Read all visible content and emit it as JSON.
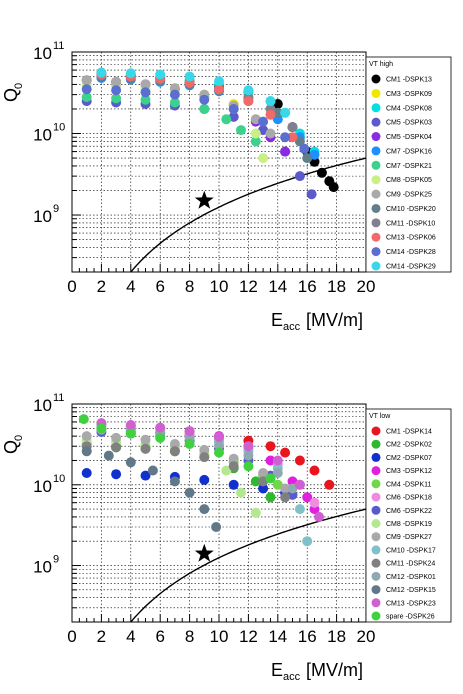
{
  "chart_data": [
    {
      "type": "scatter",
      "xlabel_main": "E",
      "xlabel_sub": "acc",
      "xlabel_unit": "[MV/m]",
      "ylabel_main": "Q",
      "ylabel_sub": "0",
      "xlim": [
        0,
        20
      ],
      "ylim": [
        200000000,
        100000000000
      ],
      "yscale": "log",
      "x_ticks": [
        "0",
        "2",
        "4",
        "6",
        "8",
        "10",
        "12",
        "14",
        "16",
        "18",
        "20"
      ],
      "y_ticks": [
        {
          "base": "10",
          "exp": "11",
          "value": 100000000000
        },
        {
          "base": "10",
          "exp": "10",
          "value": 10000000000
        },
        {
          "base": "10",
          "exp": "9",
          "value": 1000000000
        }
      ],
      "grid": true,
      "legend_title": "VT high",
      "legend_position": "right",
      "star_marker": {
        "x": 9.0,
        "y": 1500000000
      },
      "reference_curve": {
        "formula": "Q0 = 1.25e7 * E^2",
        "coefficient": 12500000
      },
      "series": [
        {
          "name": "CM1  -DSPK13",
          "color": "#000000",
          "x": [
            2.0,
            4.0,
            6.0,
            8.0,
            10.0,
            12.0,
            14.0,
            15.0,
            16.0,
            16.5,
            17.0,
            17.5,
            17.8
          ],
          "y": [
            55000000000.0,
            52000000000.0,
            48000000000.0,
            42000000000.0,
            38000000000.0,
            33000000000.0,
            23000000000.0,
            12000000000.0,
            6000000000.0,
            4500000000.0,
            3300000000.0,
            2600000000.0,
            2200000000.0
          ]
        },
        {
          "name": "CM3  -DSPK09",
          "color": "#f2e600",
          "x": [
            1.0,
            3.0,
            5.0,
            7.0,
            9.0,
            11.0,
            12.5,
            13.5
          ],
          "y": [
            45000000000.0,
            43000000000.0,
            40000000000.0,
            36000000000.0,
            30000000000.0,
            23000000000.0,
            14000000000.0,
            9000000000.0
          ]
        },
        {
          "name": "CM4  -DSPK08",
          "color": "#00e0e0",
          "x": [
            2.0,
            4.0,
            6.0,
            8.0,
            10.0,
            12.0,
            13.5,
            14.5,
            15.5,
            16.5
          ],
          "y": [
            55000000000.0,
            52000000000.0,
            50000000000.0,
            45000000000.0,
            40000000000.0,
            32000000000.0,
            25000000000.0,
            18000000000.0,
            10000000000.0,
            6000000000.0
          ]
        },
        {
          "name": "CM5  -DSPK03",
          "color": "#5a5acd",
          "x": [
            1.0,
            3.0,
            5.0,
            7.0,
            9.0,
            11.0,
            13.0,
            14.5,
            15.5,
            16.3
          ],
          "y": [
            25000000000.0,
            24000000000.0,
            23000000000.0,
            22000000000.0,
            20000000000.0,
            16000000000.0,
            11000000000.0,
            6000000000.0,
            3000000000.0,
            1800000000.0
          ]
        },
        {
          "name": "CM5  -DSPK04",
          "color": "#8a2be2",
          "x": [
            1.0,
            3.0,
            5.0,
            7.0,
            9.0,
            11.0,
            12.5,
            13.5,
            14.5
          ],
          "y": [
            45000000000.0,
            43000000000.0,
            40000000000.0,
            35000000000.0,
            28000000000.0,
            20000000000.0,
            14000000000.0,
            9000000000.0,
            6000000000.0
          ]
        },
        {
          "name": "CM7  -DSPK16",
          "color": "#1e90ff",
          "x": [
            2.0,
            4.0,
            6.0,
            8.0,
            10.0,
            12.0,
            14.0,
            15.5,
            16.5
          ],
          "y": [
            48000000000.0,
            46000000000.0,
            43000000000.0,
            39000000000.0,
            33000000000.0,
            25000000000.0,
            15000000000.0,
            9000000000.0,
            5500000000.0
          ]
        },
        {
          "name": "CM7  -DSPK21",
          "color": "#3cd28c",
          "x": [
            1.0,
            3.0,
            5.0,
            7.0,
            9.0,
            10.5,
            11.5,
            12.5
          ],
          "y": [
            28000000000.0,
            27000000000.0,
            26000000000.0,
            24000000000.0,
            20000000000.0,
            15000000000.0,
            11000000000.0,
            8000000000.0
          ]
        },
        {
          "name": "CM8  -DSPK05",
          "color": "#c8f082",
          "x": [
            1.0,
            3.0,
            5.0,
            7.0,
            9.0,
            11.0,
            12.5,
            13.0
          ],
          "y": [
            40000000000.0,
            38000000000.0,
            36000000000.0,
            33000000000.0,
            27000000000.0,
            20000000000.0,
            10000000000.0,
            5000000000.0
          ]
        },
        {
          "name": "CM9  -DSPK25",
          "color": "#a9a9a9",
          "x": [
            1.0,
            3.0,
            5.0,
            7.0,
            9.0,
            11.0,
            12.5,
            13.5
          ],
          "y": [
            45000000000.0,
            43000000000.0,
            40000000000.0,
            36000000000.0,
            30000000000.0,
            22000000000.0,
            15000000000.0,
            10000000000.0
          ]
        },
        {
          "name": "CM10  -DSPK20",
          "color": "#607f8a",
          "x": [
            2.0,
            4.0,
            6.0,
            8.0,
            10.0,
            12.0,
            14.0,
            15.5,
            16.0
          ],
          "y": [
            50000000000.0,
            48000000000.0,
            45000000000.0,
            40000000000.0,
            34000000000.0,
            27000000000.0,
            18000000000.0,
            8000000000.0,
            5000000000.0
          ]
        },
        {
          "name": "CM11  -DSPK10",
          "color": "#808090",
          "x": [
            2.0,
            4.0,
            6.0,
            8.0,
            10.0,
            12.0,
            13.5,
            15.0
          ],
          "y": [
            52000000000.0,
            50000000000.0,
            47000000000.0,
            43000000000.0,
            36000000000.0,
            28000000000.0,
            20000000000.0,
            12000000000.0
          ]
        },
        {
          "name": "CM13  -DSPK06",
          "color": "#f06a6a",
          "x": [
            2.0,
            4.0,
            6.0,
            8.0,
            10.0,
            12.0,
            13.5,
            15.0
          ],
          "y": [
            53000000000.0,
            50000000000.0,
            47000000000.0,
            42000000000.0,
            35000000000.0,
            25000000000.0,
            17000000000.0,
            9000000000.0
          ]
        },
        {
          "name": "CM14  -DSPK28",
          "color": "#5b6fd0",
          "x": [
            1.0,
            3.0,
            5.0,
            7.0,
            9.0,
            11.0,
            13.0,
            14.5,
            15.8
          ],
          "y": [
            35000000000.0,
            34000000000.0,
            32000000000.0,
            30000000000.0,
            26000000000.0,
            20000000000.0,
            14000000000.0,
            9000000000.0,
            6500000000.0
          ]
        },
        {
          "name": "CM14  -DSPK29",
          "color": "#38d8e8",
          "x": [
            2.0,
            4.0,
            6.0,
            8.0,
            10.0,
            12.0,
            13.5,
            14.5
          ],
          "y": [
            56000000000.0,
            55000000000.0,
            53000000000.0,
            50000000000.0,
            44000000000.0,
            34000000000.0,
            25000000000.0,
            18000000000.0
          ]
        }
      ]
    },
    {
      "type": "scatter",
      "xlabel_main": "E",
      "xlabel_sub": "acc",
      "xlabel_unit": "[MV/m]",
      "ylabel_main": "Q",
      "ylabel_sub": "0",
      "xlim": [
        0,
        20
      ],
      "ylim": [
        200000000,
        100000000000
      ],
      "yscale": "log",
      "x_ticks": [
        "0",
        "2",
        "4",
        "6",
        "8",
        "10",
        "12",
        "14",
        "16",
        "18",
        "20"
      ],
      "y_ticks": [
        {
          "base": "10",
          "exp": "11",
          "value": 100000000000
        },
        {
          "base": "10",
          "exp": "10",
          "value": 10000000000
        },
        {
          "base": "10",
          "exp": "9",
          "value": 1000000000
        }
      ],
      "grid": true,
      "legend_title": "VT low",
      "legend_position": "right",
      "star_marker": {
        "x": 9.0,
        "y": 1400000000
      },
      "reference_curve": {
        "formula": "Q0 = 1.25e7 * E^2",
        "coefficient": 12500000
      },
      "series": [
        {
          "name": "CM1  -DSPK14",
          "color": "#e8141e",
          "x": [
            4.0,
            6.0,
            8.0,
            10.0,
            12.0,
            13.5,
            14.5,
            15.5,
            16.5,
            17.5
          ],
          "y": [
            45000000000.0,
            44000000000.0,
            42000000000.0,
            39000000000.0,
            35000000000.0,
            30000000000.0,
            25000000000.0,
            20000000000.0,
            15000000000.0,
            10000000000.0
          ]
        },
        {
          "name": "CM2  -DSPK02",
          "color": "#2db82d",
          "x": [
            1.0,
            3.0,
            5.0,
            7.0,
            9.0,
            11.0,
            12.5,
            13.5
          ],
          "y": [
            30000000000.0,
            29000000000.0,
            28000000000.0,
            26000000000.0,
            22000000000.0,
            16000000000.0,
            11000000000.0,
            7000000000.0
          ]
        },
        {
          "name": "CM2  -DSPK07",
          "color": "#1030d0",
          "x": [
            1.0,
            3.0,
            5.0,
            7.0,
            9.0,
            11.0,
            13.0,
            14.5
          ],
          "y": [
            14000000000.0,
            13500000000.0,
            13000000000.0,
            12500000000.0,
            11500000000.0,
            10000000000.0,
            9000000000.0,
            8000000000.0
          ]
        },
        {
          "name": "CM3  -DSPK12",
          "color": "#e020e0",
          "x": [
            2.0,
            4.0,
            6.0,
            8.0,
            10.0,
            12.0,
            13.5,
            15.0,
            16.0,
            16.5
          ],
          "y": [
            55000000000.0,
            53000000000.0,
            50000000000.0,
            46000000000.0,
            40000000000.0,
            30000000000.0,
            20000000000.0,
            11000000000.0,
            7000000000.0,
            5000000000.0
          ]
        },
        {
          "name": "CM4  -DSPK11",
          "color": "#70d848",
          "x": [
            1.0,
            3.0,
            5.0,
            7.0,
            9.0,
            11.0,
            13.0,
            14.0
          ],
          "y": [
            32000000000.0,
            31000000000.0,
            30000000000.0,
            28000000000.0,
            24000000000.0,
            19000000000.0,
            13000000000.0,
            10000000000.0
          ]
        },
        {
          "name": "CM6  -DSPK18",
          "color": "#f08ce0",
          "x": [
            2.0,
            4.0,
            6.0,
            8.0,
            10.0,
            12.0,
            14.0,
            15.5,
            16.5
          ],
          "y": [
            55000000000.0,
            52000000000.0,
            48000000000.0,
            43000000000.0,
            36000000000.0,
            28000000000.0,
            18000000000.0,
            10000000000.0,
            6000000000.0
          ]
        },
        {
          "name": "CM6  -DSPK22",
          "color": "#5a5acd",
          "x": [
            2.0,
            4.0,
            6.0,
            8.0,
            10.0,
            12.0,
            13.5,
            15.0
          ],
          "y": [
            45000000000.0,
            43000000000.0,
            40000000000.0,
            35000000000.0,
            28000000000.0,
            20000000000.0,
            13000000000.0,
            7500000000.0
          ]
        },
        {
          "name": "CM8  -DSPK19",
          "color": "#b4e890",
          "x": [
            1.0,
            3.0,
            5.0,
            7.0,
            9.0,
            10.5,
            11.5,
            12.5
          ],
          "y": [
            35000000000.0,
            34000000000.0,
            32000000000.0,
            29000000000.0,
            23000000000.0,
            15000000000.0,
            8000000000.0,
            4500000000.0
          ]
        },
        {
          "name": "CM9  -DSPK27",
          "color": "#a9a9a9",
          "x": [
            1.0,
            3.0,
            5.0,
            7.0,
            9.0,
            11.0,
            13.0,
            14.5
          ],
          "y": [
            40000000000.0,
            38000000000.0,
            36000000000.0,
            32000000000.0,
            27000000000.0,
            21000000000.0,
            14000000000.0,
            9000000000.0
          ]
        },
        {
          "name": "CM10  -DSPK17",
          "color": "#80c0c8",
          "x": [
            2.0,
            4.0,
            6.0,
            8.0,
            10.0,
            12.0,
            14.0,
            15.5,
            16.0
          ],
          "y": [
            50000000000.0,
            48000000000.0,
            45000000000.0,
            40000000000.0,
            34000000000.0,
            26000000000.0,
            16000000000.0,
            5000000000.0,
            2000000000.0
          ]
        },
        {
          "name": "CM11  -DSPK24",
          "color": "#808080",
          "x": [
            1.0,
            3.0,
            5.0,
            7.0,
            9.0,
            11.0,
            13.0,
            14.5
          ],
          "y": [
            30000000000.0,
            29000000000.0,
            28000000000.0,
            26000000000.0,
            22000000000.0,
            17000000000.0,
            11000000000.0,
            7000000000.0
          ]
        },
        {
          "name": "CM12  -DSPK01",
          "color": "#90a8b0",
          "x": [
            2.0,
            4.0,
            6.0,
            8.0,
            10.0,
            12.0,
            14.0,
            15.0
          ],
          "y": [
            48000000000.0,
            46000000000.0,
            43000000000.0,
            38000000000.0,
            31000000000.0,
            23000000000.0,
            14000000000.0,
            9000000000.0
          ]
        },
        {
          "name": "CM12  -DSPK15",
          "color": "#607888",
          "x": [
            1.0,
            2.5,
            4.0,
            5.5,
            7.0,
            8.0,
            9.0,
            9.8
          ],
          "y": [
            26000000000.0,
            23000000000.0,
            19000000000.0,
            15000000000.0,
            11000000000.0,
            8000000000.0,
            5000000000.0,
            3000000000.0
          ]
        },
        {
          "name": "CM13  -DSPK23",
          "color": "#d060d0",
          "x": [
            2.0,
            4.0,
            6.0,
            8.0,
            10.0,
            12.0,
            14.0,
            15.5,
            16.8
          ],
          "y": [
            58000000000.0,
            55000000000.0,
            51000000000.0,
            46000000000.0,
            39000000000.0,
            30000000000.0,
            20000000000.0,
            10000000000.0,
            4000000000.0
          ]
        },
        {
          "name": "spare  -DSPK26",
          "color": "#40d040",
          "x": [
            0.8,
            2.0,
            4.0,
            6.0,
            8.0,
            10.0,
            12.0,
            13.5
          ],
          "y": [
            65000000000.0,
            50000000000.0,
            43000000000.0,
            38000000000.0,
            32000000000.0,
            25000000000.0,
            17000000000.0,
            12000000000.0
          ]
        }
      ]
    }
  ]
}
